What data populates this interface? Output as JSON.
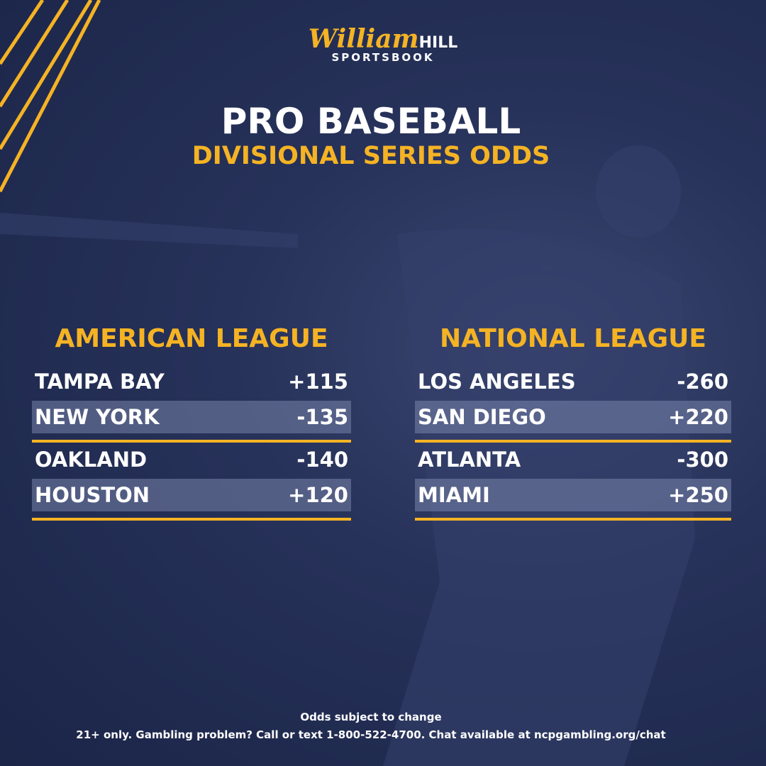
{
  "brand": {
    "script": "William",
    "bold": "HILL",
    "sub": "SPORTSBOOK"
  },
  "title": "PRO BASEBALL",
  "subtitle": "DIVISIONAL SERIES ODDS",
  "leagues": [
    {
      "name": "AMERICAN LEAGUE",
      "matchups": [
        [
          {
            "team": "TAMPA BAY",
            "odds": "+115"
          },
          {
            "team": "NEW YORK",
            "odds": "-135"
          }
        ],
        [
          {
            "team": "OAKLAND",
            "odds": "-140"
          },
          {
            "team": "HOUSTON",
            "odds": "+120"
          }
        ]
      ]
    },
    {
      "name": "NATIONAL LEAGUE",
      "matchups": [
        [
          {
            "team": "LOS ANGELES",
            "odds": "-260"
          },
          {
            "team": "SAN DIEGO",
            "odds": "+220"
          }
        ],
        [
          {
            "team": "ATLANTA",
            "odds": "-300"
          },
          {
            "team": "MIAMI",
            "odds": "+250"
          }
        ]
      ]
    }
  ],
  "footer": {
    "note": "Odds subject to change",
    "disclaimer": "21+ only. Gambling problem? Call or text 1-800-522-4700. Chat available at ncpgambling.org/chat"
  }
}
